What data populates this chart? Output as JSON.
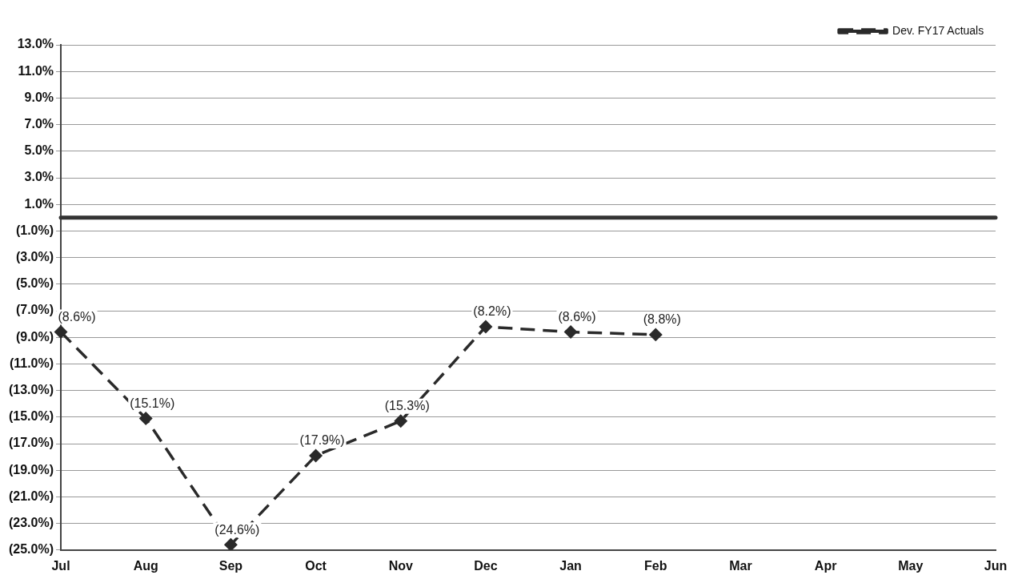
{
  "chart_data": {
    "type": "line",
    "categories": [
      "Jul",
      "Aug",
      "Sep",
      "Oct",
      "Nov",
      "Dec",
      "Jan",
      "Feb",
      "Mar",
      "Apr",
      "May",
      "Jun"
    ],
    "series": [
      {
        "name": "Dev. FY17 Actuals",
        "color": "#2a2a2a",
        "values": [
          -8.6,
          -15.1,
          -24.6,
          -17.9,
          -15.3,
          -8.2,
          -8.6,
          -8.8,
          null,
          null,
          null,
          null
        ],
        "value_labels": [
          "(8.6%)",
          "(15.1%)",
          "(24.6%)",
          "(17.9%)",
          "(15.3%)",
          "(8.2%)",
          "(8.6%)",
          "(8.8%)",
          null,
          null,
          null,
          null
        ]
      }
    ],
    "ylim": [
      -25,
      13
    ],
    "yticks": [
      {
        "value": 13,
        "label": "13.0%"
      },
      {
        "value": 11,
        "label": "11.0%"
      },
      {
        "value": 9,
        "label": "9.0%"
      },
      {
        "value": 7,
        "label": "7.0%"
      },
      {
        "value": 5,
        "label": "5.0%"
      },
      {
        "value": 3,
        "label": "3.0%"
      },
      {
        "value": 1,
        "label": "1.0%"
      },
      {
        "value": -1,
        "label": "(1.0%)"
      },
      {
        "value": -3,
        "label": "(3.0%)"
      },
      {
        "value": -5,
        "label": "(5.0%)"
      },
      {
        "value": -7,
        "label": "(7.0%)"
      },
      {
        "value": -9,
        "label": "(9.0%)"
      },
      {
        "value": -11,
        "label": "(11.0%)"
      },
      {
        "value": -13,
        "label": "(13.0%)"
      },
      {
        "value": -15,
        "label": "(15.0%)"
      },
      {
        "value": -17,
        "label": "(17.0%)"
      },
      {
        "value": -19,
        "label": "(19.0%)"
      },
      {
        "value": -21,
        "label": "(21.0%)"
      },
      {
        "value": -23,
        "label": "(23.0%)"
      },
      {
        "value": -25,
        "label": "(25.0%)"
      }
    ],
    "ref_lines": [
      {
        "axis": "y",
        "value": 0,
        "color": "#333333",
        "line_style": "solid"
      }
    ],
    "grid": "y",
    "legend": "top right",
    "marker": "diamond",
    "line_style": "dashed"
  }
}
